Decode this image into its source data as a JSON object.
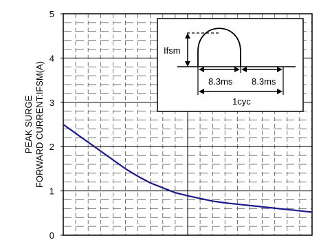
{
  "chart_data": {
    "type": "line",
    "title": "",
    "xlabel": "",
    "ylabel_lines": [
      "PEAK SURGE",
      "FORWARD CURRENT:IFSM(A)"
    ],
    "ylim": [
      0,
      5
    ],
    "y_ticks": [
      "0",
      "1",
      "2",
      "3",
      "4",
      "5"
    ],
    "x_range": [
      0,
      1
    ],
    "x_tick_labels": [],
    "grid": true,
    "series": [
      {
        "color": "#1a1a8c",
        "points": [
          {
            "x": 0.0,
            "y": 2.5
          },
          {
            "x": 0.05,
            "y": 2.3
          },
          {
            "x": 0.1,
            "y": 2.1
          },
          {
            "x": 0.15,
            "y": 1.9
          },
          {
            "x": 0.2,
            "y": 1.7
          },
          {
            "x": 0.25,
            "y": 1.5
          },
          {
            "x": 0.3,
            "y": 1.33
          },
          {
            "x": 0.35,
            "y": 1.18
          },
          {
            "x": 0.4,
            "y": 1.07
          },
          {
            "x": 0.45,
            "y": 0.96
          },
          {
            "x": 0.5,
            "y": 0.89
          },
          {
            "x": 0.55,
            "y": 0.83
          },
          {
            "x": 0.6,
            "y": 0.77
          },
          {
            "x": 0.65,
            "y": 0.73
          },
          {
            "x": 0.7,
            "y": 0.7
          },
          {
            "x": 0.75,
            "y": 0.67
          },
          {
            "x": 0.8,
            "y": 0.64
          },
          {
            "x": 0.85,
            "y": 0.61
          },
          {
            "x": 0.9,
            "y": 0.58
          },
          {
            "x": 0.95,
            "y": 0.55
          },
          {
            "x": 1.0,
            "y": 0.52
          }
        ]
      }
    ],
    "inset": {
      "label_ifsm": "Ifsm",
      "label_half1": "8.3ms",
      "label_half2": "8.3ms",
      "label_cycle": "1cyc"
    }
  }
}
